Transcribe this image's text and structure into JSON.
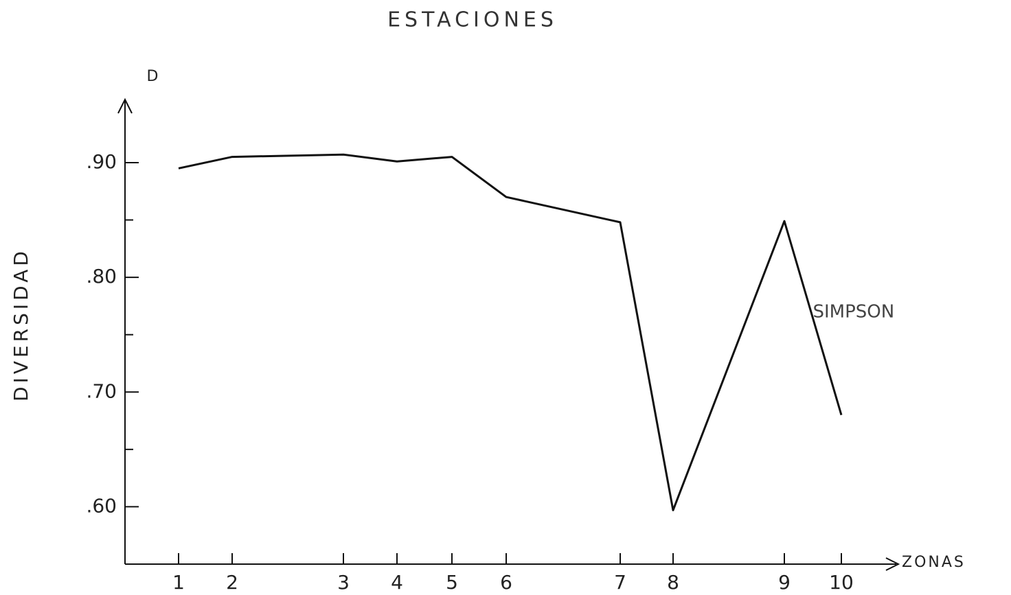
{
  "chart_data": {
    "type": "line",
    "title": "ESTACIONES",
    "y_axis_name": "D",
    "ylabel": "DIVERSIDAD",
    "xlabel": "ZONAS",
    "categories": [
      "1",
      "2",
      "3",
      "4",
      "5",
      "6",
      "7",
      "8",
      "9",
      "10"
    ],
    "series": [
      {
        "name": "SIMPSON",
        "color": "#111111",
        "values": [
          0.895,
          0.905,
          0.907,
          0.901,
          0.905,
          0.87,
          0.848,
          0.597,
          0.849,
          0.68
        ]
      }
    ],
    "ylim": [
      0.55,
      0.955
    ],
    "yticks": [
      {
        "value": 0.6,
        "label": ".60"
      },
      {
        "value": 0.7,
        "label": ".70"
      },
      {
        "value": 0.8,
        "label": ".80"
      },
      {
        "value": 0.9,
        "label": ".90"
      }
    ],
    "minor_yticks": [
      0.65,
      0.75,
      0.85
    ],
    "grid": false
  }
}
